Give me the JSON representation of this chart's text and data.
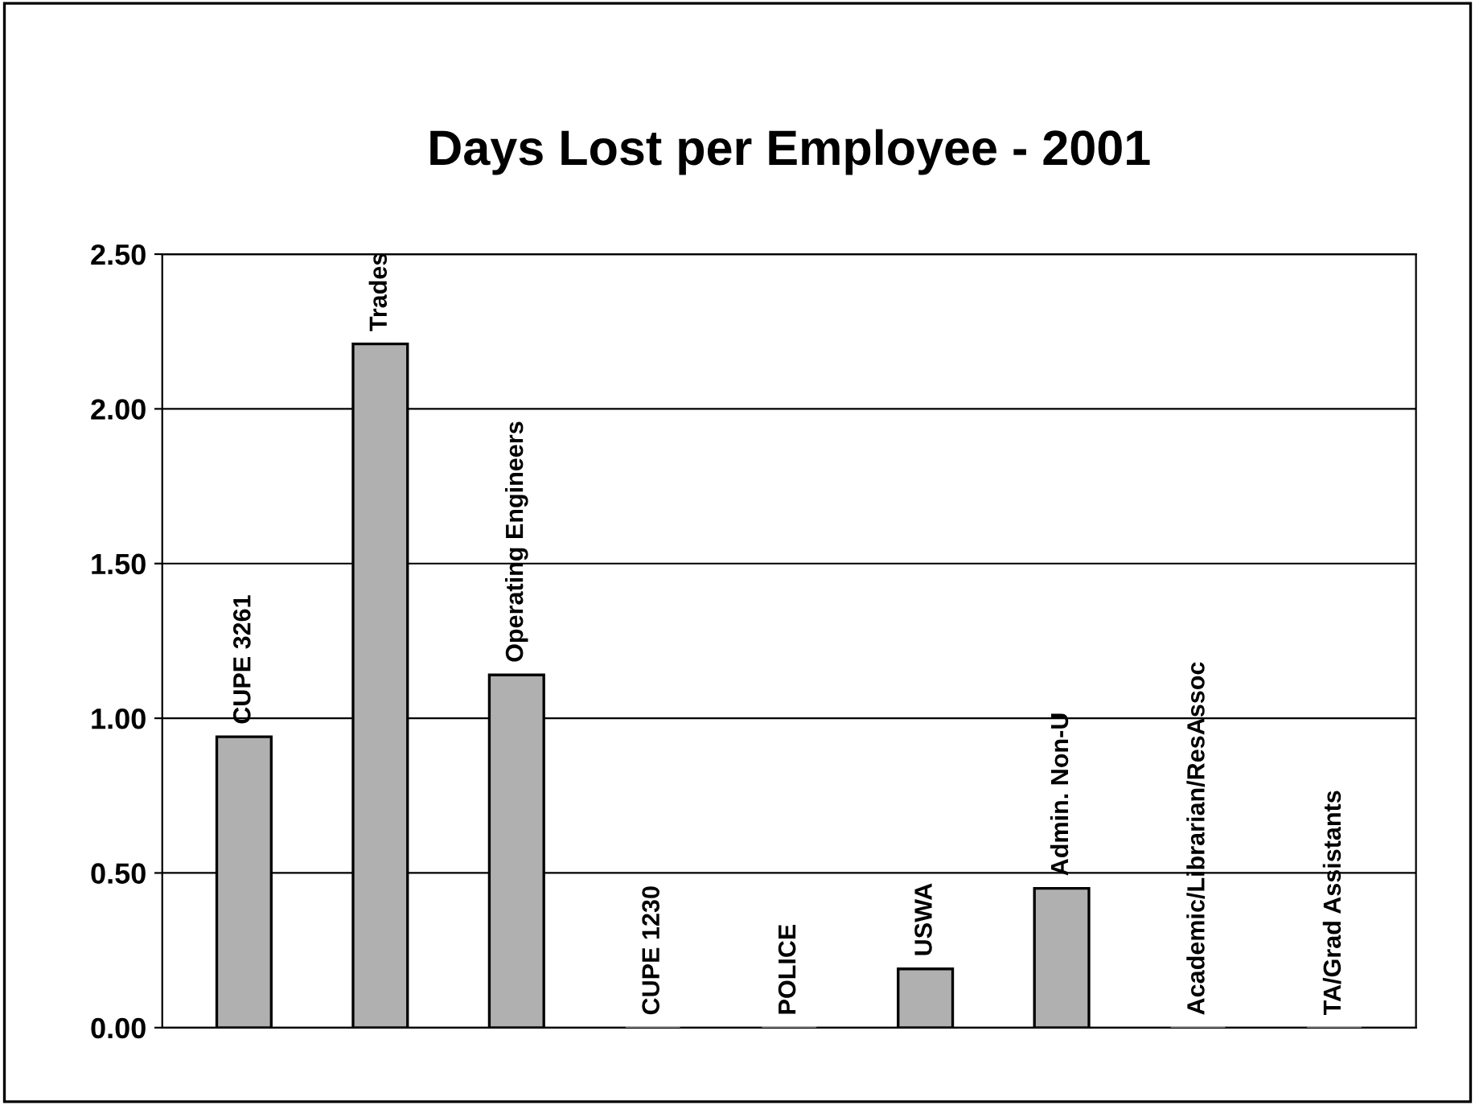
{
  "chart_data": {
    "type": "bar",
    "title": "Days Lost per Employee - 2001",
    "categories": [
      "CUPE 3261",
      "Trades",
      "Operating Engineers",
      "CUPE 1230",
      "POLICE",
      "USWA",
      "Admin. Non-U",
      "Academic/Librarian/ResAssoc",
      "TA/Grad Assistants"
    ],
    "values": [
      0.94,
      2.21,
      1.14,
      0,
      0,
      0.19,
      0.45,
      0,
      0
    ],
    "color": "#b0b0b0",
    "ylim": [
      0,
      2.5
    ],
    "yticks": [
      {
        "value": 0,
        "label": "0.00"
      },
      {
        "value": 0.5,
        "label": "0.50"
      },
      {
        "value": 1,
        "label": "1.00"
      },
      {
        "value": 1.5,
        "label": "1.50"
      },
      {
        "value": 2,
        "label": "2.00"
      },
      {
        "value": 2.5,
        "label": "2.50"
      }
    ],
    "grid": "y",
    "legend": false
  }
}
